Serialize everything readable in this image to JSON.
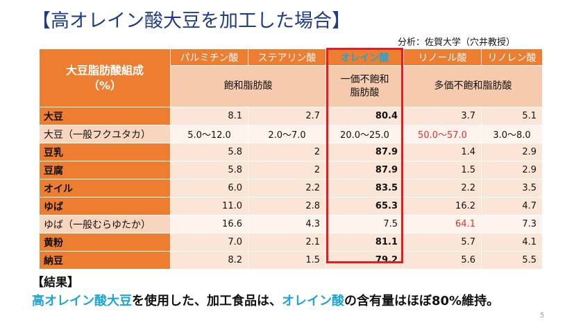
{
  "title": "【高オレイン酸大豆を加工した場合】",
  "credit": "分析：佐賀大学（穴井教授）",
  "table": {
    "corner_line1": "大豆脂肪酸組成",
    "corner_line2": "（%）",
    "columns": [
      "パルミチン酸",
      "ステアリン酸",
      "オレイン酸",
      "リノール酸",
      "リノレン酸"
    ],
    "group_saturated": "飽和脂肪酸",
    "group_mono_line1": "一価不飽和",
    "group_mono_line2": "脂肪酸",
    "group_poly": "多価不飽和脂肪酸",
    "rows": [
      {
        "label": "大豆",
        "values": [
          "8.1",
          "2.7",
          "80.4",
          "3.7",
          "5.1"
        ]
      },
      {
        "label": "大豆（一般フクユタカ）",
        "values": [
          "5.0〜12.0",
          "2.0〜7.0",
          "20.0〜25.0",
          "50.0〜57.0",
          "3.0〜8.0"
        ]
      },
      {
        "label": "豆乳",
        "values": [
          "5.8",
          "2",
          "87.9",
          "1.4",
          "2.9"
        ]
      },
      {
        "label": "豆腐",
        "values": [
          "5.8",
          "2",
          "87.9",
          "1.5",
          "2.9"
        ]
      },
      {
        "label": "オイル",
        "values": [
          "6.0",
          "2.2",
          "83.5",
          "2.2",
          "3.5"
        ]
      },
      {
        "label": "ゆば",
        "values": [
          "11.0",
          "2.8",
          "65.3",
          "16.2",
          "4.7"
        ]
      },
      {
        "label": "ゆば（一般むらゆたか）",
        "values": [
          "16.6",
          "4.3",
          "7.5",
          "64.1",
          "7.3"
        ]
      },
      {
        "label": "黄粉",
        "values": [
          "7.0",
          "2.1",
          "81.1",
          "5.7",
          "4.1"
        ]
      },
      {
        "label": "納豆",
        "values": [
          "8.2",
          "1.5",
          "79.2",
          "5.6",
          "5.5"
        ]
      }
    ]
  },
  "result": {
    "label": "【結果】",
    "part1": "高オレイン酸大豆",
    "part2": "を使用した、加工食品は、",
    "part3": "オレイン酸",
    "part4": "の含有量はほぼ80%維持。"
  },
  "page_number": "5",
  "colors": {
    "orange": "#ed7d31",
    "highlight": "#e41e1e",
    "blue": "#1fa4d8",
    "title": "#1f3c8a"
  }
}
